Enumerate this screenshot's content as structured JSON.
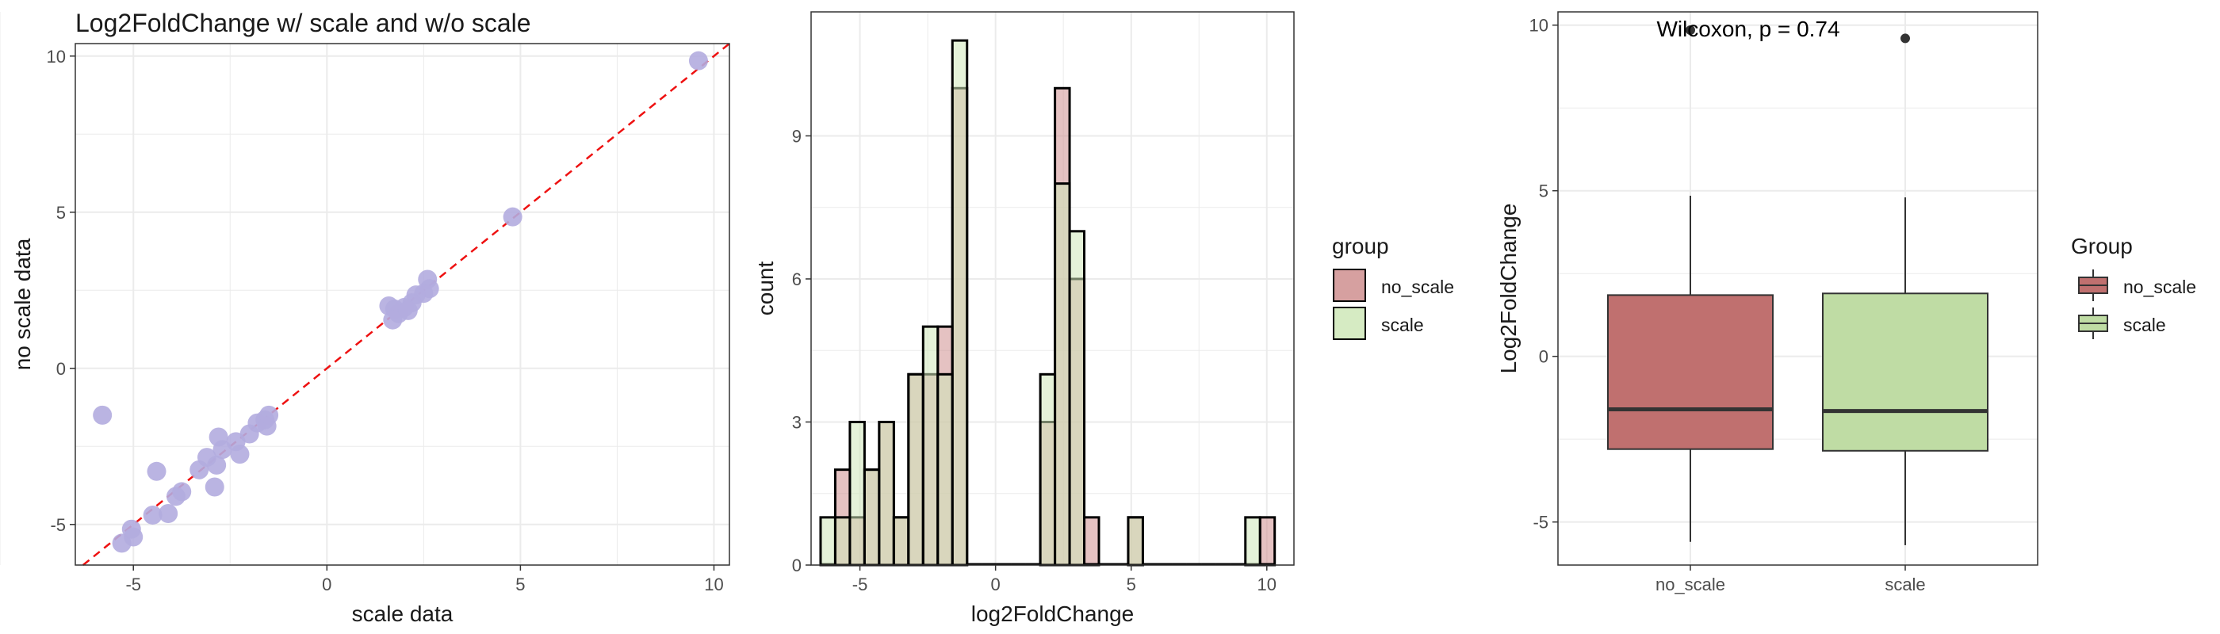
{
  "colors": {
    "grid": "#ebebeb",
    "panel_border": "#333333",
    "scatter_point": "#b3acdf",
    "identity_line": "#ee1111",
    "no_scale": "#cf8f8f",
    "scale": "#cfe8b9",
    "box_no_scale": "#c0706f",
    "box_scale": "#bfdca4",
    "text": "#1a1a1a",
    "tick_text": "#4d4d4d"
  },
  "chart_data": [
    {
      "type": "scatter",
      "title": "Log2FoldChange w/ scale and w/o scale",
      "xlabel": "scale data",
      "ylabel": "no scale data",
      "xlim": [
        -6.5,
        10.4
      ],
      "ylim": [
        -6.3,
        10.4
      ],
      "xticks": [
        -5,
        0,
        5,
        10
      ],
      "yticks": [
        -5,
        0,
        5,
        10
      ],
      "grid": true,
      "reference_line": {
        "slope": 1,
        "intercept": 0,
        "style": "dashed"
      },
      "points": [
        {
          "x": 9.6,
          "y": 9.85
        },
        {
          "x": 4.8,
          "y": 4.85
        },
        {
          "x": 2.6,
          "y": 2.85
        },
        {
          "x": 2.65,
          "y": 2.55
        },
        {
          "x": 2.5,
          "y": 2.4
        },
        {
          "x": 2.3,
          "y": 2.35
        },
        {
          "x": 2.2,
          "y": 2.1
        },
        {
          "x": 2.0,
          "y": 1.95
        },
        {
          "x": 1.85,
          "y": 1.75
        },
        {
          "x": 1.75,
          "y": 1.9
        },
        {
          "x": 1.6,
          "y": 2.0
        },
        {
          "x": 1.7,
          "y": 1.55
        },
        {
          "x": 2.1,
          "y": 1.85
        },
        {
          "x": -5.3,
          "y": -5.6
        },
        {
          "x": -5.0,
          "y": -5.4
        },
        {
          "x": -5.05,
          "y": -5.15
        },
        {
          "x": -4.5,
          "y": -4.7
        },
        {
          "x": -4.1,
          "y": -4.65
        },
        {
          "x": -3.9,
          "y": -4.1
        },
        {
          "x": -3.75,
          "y": -3.95
        },
        {
          "x": -4.4,
          "y": -3.3
        },
        {
          "x": -3.3,
          "y": -3.25
        },
        {
          "x": -3.1,
          "y": -2.85
        },
        {
          "x": -2.85,
          "y": -3.1
        },
        {
          "x": -2.9,
          "y": -3.8
        },
        {
          "x": -2.7,
          "y": -2.6
        },
        {
          "x": -2.8,
          "y": -2.2
        },
        {
          "x": -2.35,
          "y": -2.35
        },
        {
          "x": -2.25,
          "y": -2.75
        },
        {
          "x": -2.0,
          "y": -2.1
        },
        {
          "x": -1.8,
          "y": -1.75
        },
        {
          "x": -1.6,
          "y": -1.65
        },
        {
          "x": -1.55,
          "y": -1.85
        },
        {
          "x": -1.5,
          "y": -1.5
        },
        {
          "x": -5.8,
          "y": -1.5
        }
      ]
    },
    {
      "type": "bar",
      "subtype": "histogram",
      "xlabel": "log2FoldChange",
      "ylabel": "count",
      "xlim": [
        -6.8,
        11.0
      ],
      "ylim": [
        0,
        11.6
      ],
      "xticks": [
        -5,
        0,
        5,
        10
      ],
      "yticks": [
        0,
        3,
        6,
        9
      ],
      "grid": true,
      "legend": {
        "title": "group",
        "position": "right"
      },
      "bin_edges": [
        -6.45,
        -5.91,
        -5.37,
        -4.83,
        -4.29,
        -3.75,
        -3.21,
        -2.67,
        -2.13,
        -1.59,
        -1.05,
        -0.51,
        0.03,
        0.57,
        1.11,
        1.65,
        2.19,
        2.73,
        3.27,
        3.81,
        4.35,
        4.89,
        5.43,
        5.97,
        6.51,
        7.05,
        7.59,
        8.13,
        8.67,
        9.21,
        9.75,
        10.29
      ],
      "series": [
        {
          "name": "no_scale",
          "values": [
            0,
            2,
            1,
            2,
            3,
            1,
            4,
            4,
            5,
            10,
            0,
            0,
            0,
            0,
            0,
            3,
            10,
            6,
            1,
            0,
            0,
            1,
            0,
            0,
            0,
            0,
            0,
            0,
            0,
            0,
            1
          ]
        },
        {
          "name": "scale",
          "values": [
            1,
            1,
            3,
            2,
            3,
            1,
            4,
            5,
            4,
            11,
            0,
            0,
            0,
            0,
            0,
            4,
            8,
            7,
            0,
            0,
            0,
            1,
            0,
            0,
            0,
            0,
            0,
            0,
            0,
            1,
            0
          ]
        }
      ]
    },
    {
      "type": "box",
      "annotation": "Wilcoxon, p = 0.74",
      "xlabel": "",
      "ylabel": "Log2FoldChange",
      "categories": [
        "no_scale",
        "scale"
      ],
      "ylim": [
        -6.3,
        10.4
      ],
      "yticks": [
        -5,
        0,
        5,
        10
      ],
      "grid": true,
      "legend": {
        "title": "Group",
        "position": "right"
      },
      "boxes": [
        {
          "name": "no_scale",
          "min": -5.6,
          "q1": -2.8,
          "median": -1.6,
          "q3": 1.85,
          "max": 4.85,
          "outliers": [
            9.85
          ]
        },
        {
          "name": "scale",
          "min": -5.7,
          "q1": -2.85,
          "median": -1.65,
          "q3": 1.9,
          "max": 4.8,
          "outliers": [
            9.6
          ]
        }
      ]
    }
  ]
}
